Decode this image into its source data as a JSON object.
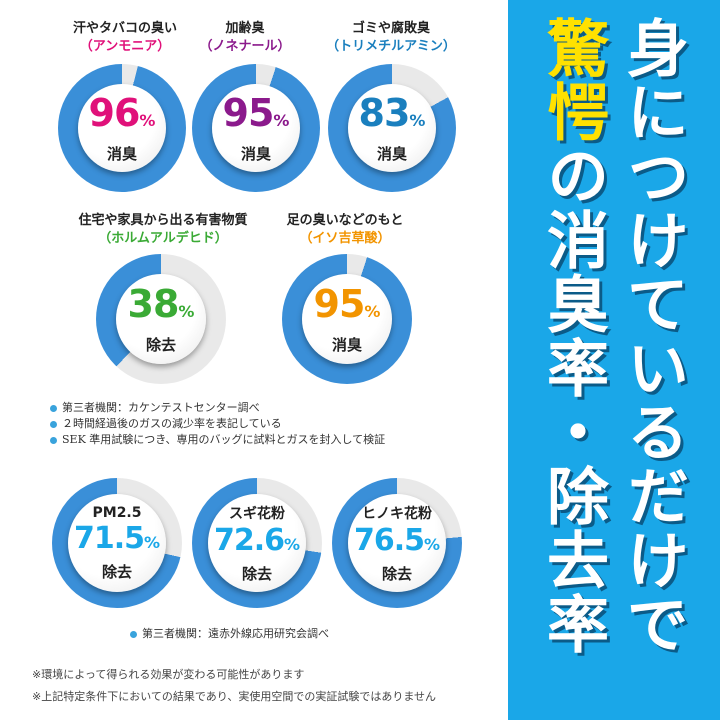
{
  "headline": {
    "line1": "身につけているだけで",
    "line2_highlight": "驚愕",
    "line2_rest": "の消臭率・除去率"
  },
  "odor_items": [
    {
      "name": "汗やタバコの臭い",
      "substance": "（アンモニア）",
      "value": "96",
      "unit": "%",
      "effect": "消臭",
      "fraction": 0.96,
      "color": "#e0117a"
    },
    {
      "name": "加齢臭",
      "substance": "（ノネナール）",
      "value": "95",
      "unit": "%",
      "effect": "消臭",
      "fraction": 0.95,
      "color": "#8b1a8c"
    },
    {
      "name": "ゴミや腐敗臭",
      "substance": "（トリメチルアミン）",
      "value": "83",
      "unit": "%",
      "effect": "消臭",
      "fraction": 0.83,
      "color": "#1a7fbe"
    },
    {
      "name": "住宅や家具から出る有害物質",
      "substance": "（ホルムアルデヒド）",
      "value": "38",
      "unit": "%",
      "effect": "除去",
      "fraction": 0.38,
      "color": "#3aaa35"
    },
    {
      "name": "足の臭いなどのもと",
      "substance": "（イソ吉草酸）",
      "value": "95",
      "unit": "%",
      "effect": "消臭",
      "fraction": 0.95,
      "color": "#f29400"
    }
  ],
  "notes1": [
    "第三者機関：カケンテストセンター調べ",
    "２時間経過後のガスの減少率を表記している",
    "SEK 準用試験につき、専用のバッグに試料とガスを封入して検証"
  ],
  "particle_items": [
    {
      "name": "PM2.5",
      "value": "71.5",
      "unit": "%",
      "effect": "除去",
      "fraction": 0.715,
      "color": "#1aa7e8"
    },
    {
      "name": "スギ花粉",
      "value": "72.6",
      "unit": "%",
      "effect": "除去",
      "fraction": 0.726,
      "color": "#1aa7e8"
    },
    {
      "name": "ヒノキ花粉",
      "value": "76.5",
      "unit": "%",
      "effect": "除去",
      "fraction": 0.765,
      "color": "#1aa7e8"
    }
  ],
  "notes2": [
    "第三者機関：遠赤外線応用研究会調べ"
  ],
  "footnotes": [
    "※環境によって得られる効果が変わる可能性があります",
    "※上記特定条件下においての結果であり、実使用空間での実証試験ではありません"
  ],
  "colors": {
    "ring": "#3a8fd8",
    "ring_bg": "#e9e9e9",
    "panel": "#1aa7e8",
    "highlight": "#ffe100"
  }
}
